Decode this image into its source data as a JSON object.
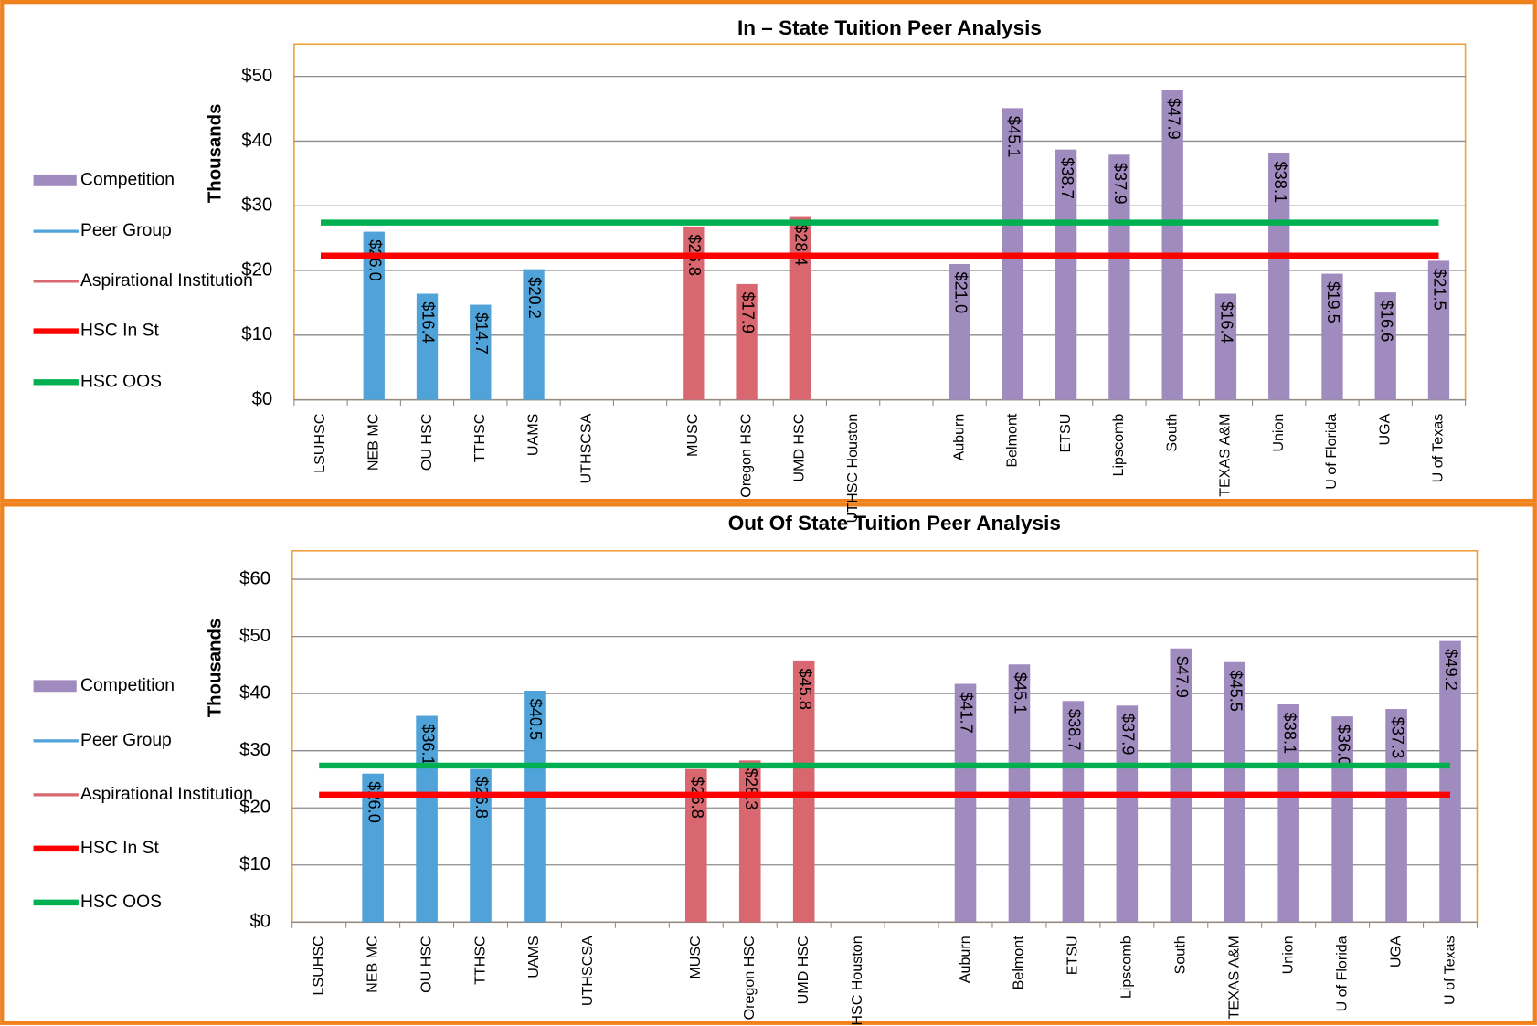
{
  "chart_data": [
    {
      "type": "bar",
      "title": "In – State Tuition Peer Analysis",
      "y_label": "Thousands",
      "categories": [
        "LSUHSC",
        "NEB MC",
        "OU HSC",
        "TTHSC",
        "UAMS",
        "UTHSCSA",
        null,
        "MUSC",
        "Oregon HSC",
        "UMD HSC",
        "UTHSC Houston",
        null,
        "Auburn",
        "Belmont",
        "ETSU",
        "Lipscomb",
        "South",
        "TEXAS A&M",
        "Union",
        "U of Florida",
        "UGA",
        "U of Texas"
      ],
      "series": [
        {
          "name": "Competition",
          "color": "#a08bbf",
          "values": [
            null,
            null,
            null,
            null,
            null,
            null,
            null,
            null,
            null,
            null,
            null,
            null,
            21.0,
            45.1,
            38.7,
            37.9,
            47.9,
            16.4,
            38.1,
            19.5,
            16.6,
            21.5
          ],
          "value_labels": [
            null,
            null,
            null,
            null,
            null,
            null,
            null,
            null,
            null,
            null,
            null,
            null,
            "$21.0",
            "$45.1",
            "$38.7",
            "$37.9",
            "$47.9",
            "$16.4",
            "$38.1",
            "$19.5",
            "$16.6",
            "$21.5"
          ]
        },
        {
          "name": "Peer Group",
          "color": "#4fa3d8",
          "values": [
            null,
            26.0,
            16.4,
            14.7,
            20.2,
            null,
            null,
            null,
            null,
            null,
            null,
            null,
            null,
            null,
            null,
            null,
            null,
            null,
            null,
            null,
            null,
            null
          ],
          "value_labels": [
            null,
            "$26.0",
            "$16.4",
            "$14.7",
            "$20.2",
            null,
            null,
            null,
            null,
            null,
            null,
            null,
            null,
            null,
            null,
            null,
            null,
            null,
            null,
            null,
            null,
            null
          ]
        },
        {
          "name": "Aspirational Institution",
          "color": "#d9676f",
          "values": [
            null,
            null,
            null,
            null,
            null,
            null,
            null,
            26.8,
            17.9,
            28.4,
            null,
            null,
            null,
            null,
            null,
            null,
            null,
            null,
            null,
            null,
            null,
            null
          ],
          "value_labels": [
            null,
            null,
            null,
            null,
            null,
            null,
            null,
            "$26.8",
            "$17.9",
            "$28.4",
            null,
            null,
            null,
            null,
            null,
            null,
            null,
            null,
            null,
            null,
            null,
            null
          ]
        },
        {
          "name": "HSC In St",
          "color": "#ff0000",
          "type": "line",
          "values": [
            22.3,
            22.3,
            22.3,
            22.3,
            22.3,
            22.3,
            22.3,
            22.3,
            22.3,
            22.3,
            22.3,
            22.3,
            22.3,
            22.3,
            22.3,
            22.3,
            22.3,
            22.3,
            22.3,
            22.3,
            22.3,
            22.3
          ]
        },
        {
          "name": "HSC OOS",
          "color": "#00b050",
          "type": "line",
          "values": [
            27.4,
            27.4,
            27.4,
            27.4,
            27.4,
            27.4,
            27.4,
            27.4,
            27.4,
            27.4,
            27.4,
            27.4,
            27.4,
            27.4,
            27.4,
            27.4,
            27.4,
            27.4,
            27.4,
            27.4,
            27.4,
            27.4
          ]
        }
      ],
      "ylim": [
        0,
        55
      ],
      "yticks": [
        {
          "value": 0,
          "label": "$0"
        },
        {
          "value": 10,
          "label": "$10"
        },
        {
          "value": 20,
          "label": "$20"
        },
        {
          "value": 30,
          "label": "$30"
        },
        {
          "value": 40,
          "label": "$40"
        },
        {
          "value": 50,
          "label": "$50"
        }
      ],
      "grid": true,
      "legend": "left"
    },
    {
      "type": "bar",
      "title": "Out Of State Tuition Peer Analysis",
      "y_label": "Thousands",
      "categories": [
        "LSUHSC",
        "NEB MC",
        "OU HSC",
        "TTHSC",
        "UAMS",
        "UTHSCSA",
        null,
        "MUSC",
        "Oregon HSC",
        "UMD HSC",
        "UTHSC Houston",
        null,
        "Auburn",
        "Belmont",
        "ETSU",
        "Lipscomb",
        "South",
        "TEXAS A&M",
        "Union",
        "U of Florida",
        "UGA",
        "U of Texas"
      ],
      "series": [
        {
          "name": "Competition",
          "color": "#a08bbf",
          "values": [
            null,
            null,
            null,
            null,
            null,
            null,
            null,
            null,
            null,
            null,
            null,
            null,
            41.7,
            45.1,
            38.7,
            37.9,
            47.9,
            45.5,
            38.1,
            36.0,
            37.3,
            49.2
          ],
          "value_labels": [
            null,
            null,
            null,
            null,
            null,
            null,
            null,
            null,
            null,
            null,
            null,
            null,
            "$41.7",
            "$45.1",
            "$38.7",
            "$37.9",
            "$47.9",
            "$45.5",
            "$38.1",
            "$36.0",
            "$37.3",
            "$49.2"
          ]
        },
        {
          "name": "Peer Group",
          "color": "#4fa3d8",
          "values": [
            null,
            26.0,
            36.1,
            26.8,
            40.5,
            null,
            null,
            null,
            null,
            null,
            null,
            null,
            null,
            null,
            null,
            null,
            null,
            null,
            null,
            null,
            null,
            null
          ],
          "value_labels": [
            null,
            "$26.0",
            "$36.1",
            "$26.8",
            "$40.5",
            null,
            null,
            null,
            null,
            null,
            null,
            null,
            null,
            null,
            null,
            null,
            null,
            null,
            null,
            null,
            null,
            null
          ]
        },
        {
          "name": "Aspirational Institution",
          "color": "#d9676f",
          "values": [
            null,
            null,
            null,
            null,
            null,
            null,
            null,
            26.8,
            28.3,
            45.8,
            null,
            null,
            null,
            null,
            null,
            null,
            null,
            null,
            null,
            null,
            null,
            null
          ],
          "value_labels": [
            null,
            null,
            null,
            null,
            null,
            null,
            null,
            "$26.8",
            "$28.3",
            "$45.8",
            null,
            null,
            null,
            null,
            null,
            null,
            null,
            null,
            null,
            null,
            null,
            null
          ]
        },
        {
          "name": "HSC In St",
          "color": "#ff0000",
          "type": "line",
          "values": [
            22.3,
            22.3,
            22.3,
            22.3,
            22.3,
            22.3,
            22.3,
            22.3,
            22.3,
            22.3,
            22.3,
            22.3,
            22.3,
            22.3,
            22.3,
            22.3,
            22.3,
            22.3,
            22.3,
            22.3,
            22.3,
            22.3
          ]
        },
        {
          "name": "HSC OOS",
          "color": "#00b050",
          "type": "line",
          "values": [
            27.4,
            27.4,
            27.4,
            27.4,
            27.4,
            27.4,
            27.4,
            27.4,
            27.4,
            27.4,
            27.4,
            27.4,
            27.4,
            27.4,
            27.4,
            27.4,
            27.4,
            27.4,
            27.4,
            27.4,
            27.4,
            27.4
          ]
        }
      ],
      "ylim": [
        0,
        65
      ],
      "yticks": [
        {
          "value": 0,
          "label": "$0"
        },
        {
          "value": 10,
          "label": "$10"
        },
        {
          "value": 20,
          "label": "$20"
        },
        {
          "value": 30,
          "label": "$30"
        },
        {
          "value": 40,
          "label": "$40"
        },
        {
          "value": 50,
          "label": "$50"
        },
        {
          "value": 60,
          "label": "$60"
        }
      ],
      "grid": true,
      "legend": "left"
    }
  ]
}
